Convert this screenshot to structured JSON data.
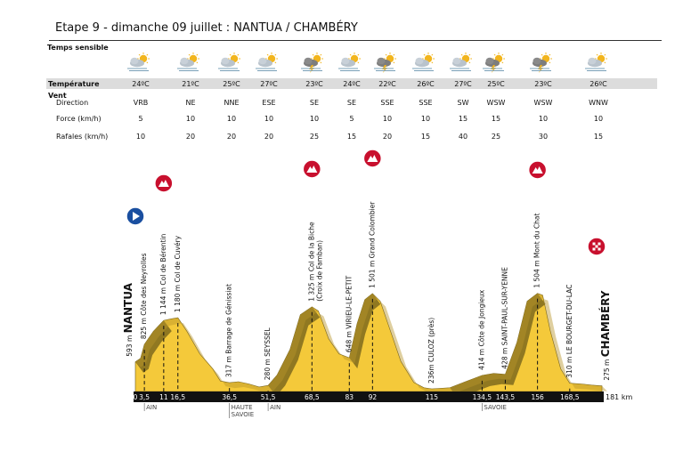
{
  "title": "Etape 9 - dimanche 09 juillet : NANTUA / CHAMBÉRY",
  "weather": {
    "labels": {
      "sky": "Temps sensible",
      "temperature": "Température",
      "wind": "Vent",
      "direction": "Direction",
      "force": "Force (km/h)",
      "gusts": "Rafales (km/h)"
    },
    "columns": [
      {
        "icon": "cloud-sun-mist-icon",
        "temp": "24ºC",
        "dir": "VRB",
        "force": "5",
        "gust": "10"
      },
      {
        "icon": "cloud-sun-mist-icon",
        "temp": "21ºC",
        "dir": "NE",
        "force": "10",
        "gust": "20"
      },
      {
        "icon": "cloud-sun-mist-icon",
        "temp": "25ºC",
        "dir": "NNE",
        "force": "10",
        "gust": "20"
      },
      {
        "icon": "cloud-sun-mist-icon",
        "temp": "27ºC",
        "dir": "ESE",
        "force": "10",
        "gust": "20"
      },
      {
        "icon": "storm-sun-icon",
        "temp": "23ºC",
        "dir": "SE",
        "force": "10",
        "gust": "25"
      },
      {
        "icon": "cloud-sun-mist-icon",
        "temp": "24ºC",
        "dir": "SE",
        "force": "5",
        "gust": "15"
      },
      {
        "icon": "storm-sun-icon",
        "temp": "22ºC",
        "dir": "SSE",
        "force": "10",
        "gust": "20"
      },
      {
        "icon": "cloud-sun-mist-icon",
        "temp": "26ºC",
        "dir": "SSE",
        "force": "10",
        "gust": "15"
      },
      {
        "icon": "cloud-sun-mist-icon",
        "temp": "27ºC",
        "dir": "SW",
        "force": "15",
        "gust": "40"
      },
      {
        "icon": "storm-sun-icon",
        "temp": "25ºC",
        "dir": "WSW",
        "force": "15",
        "gust": "25"
      },
      {
        "icon": "storm-sun-icon",
        "temp": "23ºC",
        "dir": "WSW",
        "force": "10",
        "gust": "30"
      },
      {
        "icon": "cloud-sun-mist-icon",
        "temp": "26ºC",
        "dir": "WNW",
        "force": "10",
        "gust": "15"
      }
    ]
  },
  "profile": {
    "start_name": "NANTUA",
    "finish_name": "CHAMBÉRY",
    "total_km": "181 km",
    "points": [
      {
        "km": 0,
        "label": "0",
        "alt": "593 m",
        "name": "NANTUA"
      },
      {
        "km": 3.5,
        "label": "3,5",
        "alt": "825 m",
        "name": "Côte des Neyrolles"
      },
      {
        "km": 11,
        "label": "11",
        "alt": "1 144 m",
        "name": "Col de Bérentin"
      },
      {
        "km": 16.5,
        "label": "16,5",
        "alt": "1 180 m",
        "name": "Col de Cuvéry"
      },
      {
        "km": 36.5,
        "label": "36,5",
        "alt": "317 m",
        "name": "Barrage de Génissiat"
      },
      {
        "km": 51.5,
        "label": "51,5",
        "alt": "280 m",
        "name": "SEYSSEL"
      },
      {
        "km": 68.5,
        "label": "68,5",
        "alt": "1 325 m",
        "name": "Col de la Biche",
        "name2": "(Croix de Famban)"
      },
      {
        "km": 83,
        "label": "83",
        "alt": "648 m",
        "name": "VIRIEU-LE-PETIT"
      },
      {
        "km": 92,
        "label": "92",
        "alt": "1 501 m",
        "name": "Grand Colombier"
      },
      {
        "km": 115,
        "label": "115",
        "alt": "236m",
        "name": "CULOZ (près)"
      },
      {
        "km": 134.5,
        "label": "134,5",
        "alt": "414 m",
        "name": "Côte de Jongieux"
      },
      {
        "km": 143.5,
        "label": "143,5",
        "alt": "428 m",
        "name": "SAINT-PAUL-SUR-YENNE"
      },
      {
        "km": 156,
        "label": "156",
        "alt": "1 504 m",
        "name": "Mont du Chat"
      },
      {
        "km": 168.5,
        "label": "168,5",
        "alt": "310 m",
        "name": "LE BOURGET-DU-LAC"
      },
      {
        "km": 181,
        "label": "",
        "alt": "275 m",
        "name": "CHAMBÉRY"
      }
    ],
    "departments": [
      {
        "km": 3.5,
        "lines": [
          "AIN"
        ]
      },
      {
        "km": 36.5,
        "lines": [
          "HAUTE",
          "SAVOIE"
        ]
      },
      {
        "km": 51.5,
        "lines": [
          "AIN"
        ]
      },
      {
        "km": 134.5,
        "lines": [
          "SAVOIE"
        ]
      }
    ],
    "climb_km": [
      11,
      68.5,
      92,
      156
    ],
    "colors": {
      "light": "#f4c93a",
      "dark": "#8a7420",
      "climb": "#c8102e",
      "start": "#1a4fa0"
    }
  }
}
